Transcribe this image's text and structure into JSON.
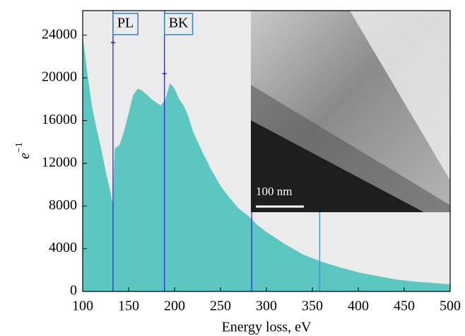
{
  "chart_data": {
    "type": "area",
    "xlabel": "Energy loss, eV",
    "ylabel": "e",
    "ylabel_sup": "−1",
    "color": "#5cc6c1",
    "x": [
      100,
      105,
      110,
      115,
      120,
      125,
      130,
      133,
      134,
      135,
      140,
      145,
      150,
      155,
      160,
      165,
      170,
      175,
      180,
      185,
      190,
      195,
      200,
      205,
      210,
      215,
      220,
      230,
      240,
      250,
      260,
      270,
      280,
      290,
      300,
      320,
      340,
      360,
      380,
      400,
      420,
      440,
      460,
      480,
      500
    ],
    "values": [
      24000,
      20500,
      17400,
      15300,
      13400,
      11300,
      9400,
      8100,
      11400,
      13400,
      13700,
      15000,
      16700,
      18400,
      19000,
      18800,
      18400,
      18000,
      17700,
      17400,
      18000,
      19500,
      19000,
      18000,
      17400,
      16400,
      15000,
      13100,
      11400,
      9900,
      8750,
      7750,
      7100,
      6230,
      5570,
      4440,
      3450,
      2790,
      2250,
      1790,
      1460,
      1130,
      930,
      800,
      660
    ],
    "xlim": [
      100,
      500
    ],
    "ylim": [
      0,
      26300
    ],
    "xticks": [
      100,
      150,
      200,
      250,
      300,
      350,
      400,
      450,
      500
    ],
    "yticks": [
      0,
      4000,
      8000,
      12000,
      16000,
      20000,
      24000
    ],
    "vlines": [
      {
        "x": 133,
        "color": "#2b2bd1"
      },
      {
        "x": 189,
        "color": "#2b2bd1"
      },
      {
        "x": 284,
        "color": "#2b2bd1"
      },
      {
        "x": 358,
        "color": "#3d8fcf"
      }
    ],
    "annotations": [
      {
        "label": "PL",
        "x": 133,
        "y": 23300
      },
      {
        "label": "BK",
        "x": 189,
        "y": 20400
      }
    ],
    "inset_label": "100 nm"
  }
}
